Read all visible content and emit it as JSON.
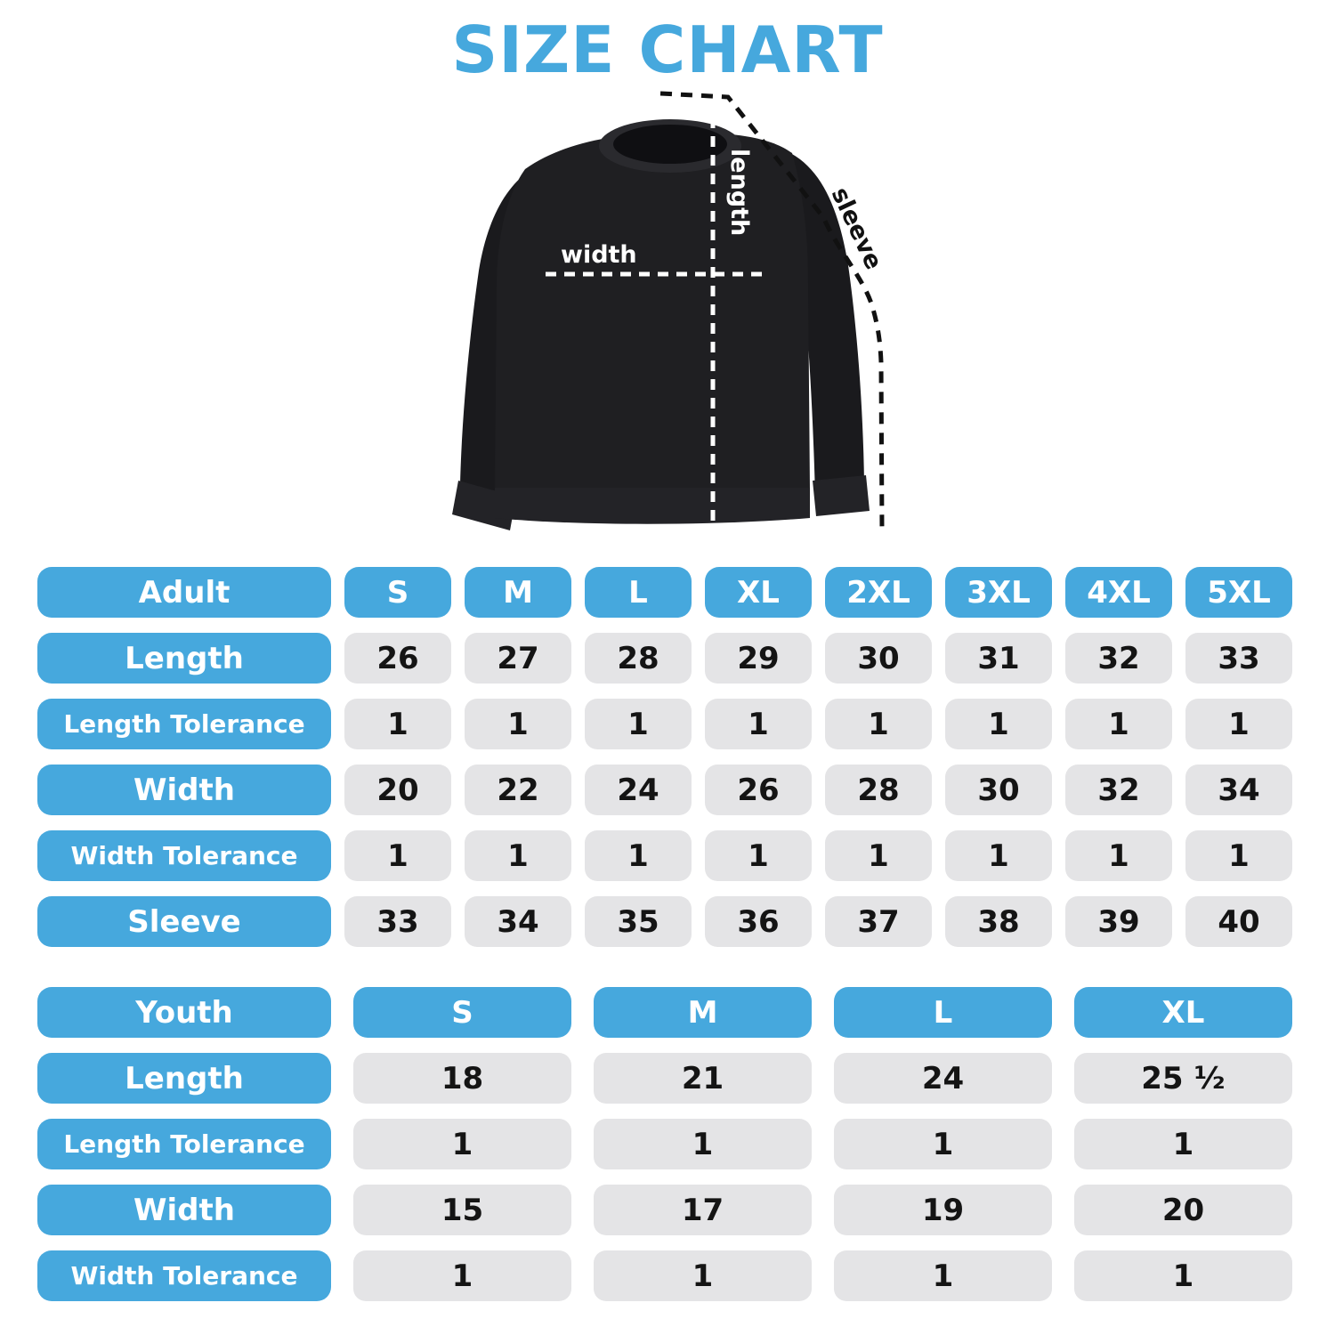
{
  "title": "SIZE CHART",
  "colors": {
    "accent_blue": "#46A8DD",
    "cell_gray": "#E4E4E6",
    "value_text": "#141414",
    "header_text": "#FFFFFF",
    "shirt_body": "#1F1F22",
    "shirt_sleeve": "#1A1A1D",
    "shirt_trim": "#232327",
    "background": "#FFFFFF"
  },
  "diagram": {
    "width_label": "width",
    "length_label": "length",
    "sleeve_label": "sleeve"
  },
  "adult_table": {
    "header": {
      "label": "Adult",
      "sizes": [
        "S",
        "M",
        "L",
        "XL",
        "2XL",
        "3XL",
        "4XL",
        "5XL"
      ]
    },
    "rows": [
      {
        "label": "Length",
        "small": false,
        "values": [
          "26",
          "27",
          "28",
          "29",
          "30",
          "31",
          "32",
          "33"
        ]
      },
      {
        "label": "Length Tolerance",
        "small": true,
        "values": [
          "1",
          "1",
          "1",
          "1",
          "1",
          "1",
          "1",
          "1"
        ]
      },
      {
        "label": "Width",
        "small": false,
        "values": [
          "20",
          "22",
          "24",
          "26",
          "28",
          "30",
          "32",
          "34"
        ]
      },
      {
        "label": "Width Tolerance",
        "small": true,
        "values": [
          "1",
          "1",
          "1",
          "1",
          "1",
          "1",
          "1",
          "1"
        ]
      },
      {
        "label": "Sleeve",
        "small": false,
        "values": [
          "33",
          "34",
          "35",
          "36",
          "37",
          "38",
          "39",
          "40"
        ]
      }
    ]
  },
  "youth_table": {
    "header": {
      "label": "Youth",
      "sizes": [
        "S",
        "M",
        "L",
        "XL"
      ]
    },
    "rows": [
      {
        "label": "Length",
        "small": false,
        "values": [
          "18",
          "21",
          "24",
          "25 ¹⁄₂"
        ]
      },
      {
        "label": "Length Tolerance",
        "small": true,
        "values": [
          "1",
          "1",
          "1",
          "1"
        ]
      },
      {
        "label": "Width",
        "small": false,
        "values": [
          "15",
          "17",
          "19",
          "20"
        ]
      },
      {
        "label": "Width Tolerance",
        "small": true,
        "values": [
          "1",
          "1",
          "1",
          "1"
        ]
      }
    ]
  },
  "chart_data": [
    {
      "type": "table",
      "title": "Adult",
      "columns": [
        "Adult",
        "S",
        "M",
        "L",
        "XL",
        "2XL",
        "3XL",
        "4XL",
        "5XL"
      ],
      "rows": [
        [
          "Length",
          26,
          27,
          28,
          29,
          30,
          31,
          32,
          33
        ],
        [
          "Length Tolerance",
          1,
          1,
          1,
          1,
          1,
          1,
          1,
          1
        ],
        [
          "Width",
          20,
          22,
          24,
          26,
          28,
          30,
          32,
          34
        ],
        [
          "Width Tolerance",
          1,
          1,
          1,
          1,
          1,
          1,
          1,
          1
        ],
        [
          "Sleeve",
          33,
          34,
          35,
          36,
          37,
          38,
          39,
          40
        ]
      ]
    },
    {
      "type": "table",
      "title": "Youth",
      "columns": [
        "Youth",
        "S",
        "M",
        "L",
        "XL"
      ],
      "rows": [
        [
          "Length",
          18,
          21,
          24,
          25.5
        ],
        [
          "Length Tolerance",
          1,
          1,
          1,
          1
        ],
        [
          "Width",
          15,
          17,
          19,
          20
        ],
        [
          "Width Tolerance",
          1,
          1,
          1,
          1
        ]
      ]
    }
  ]
}
